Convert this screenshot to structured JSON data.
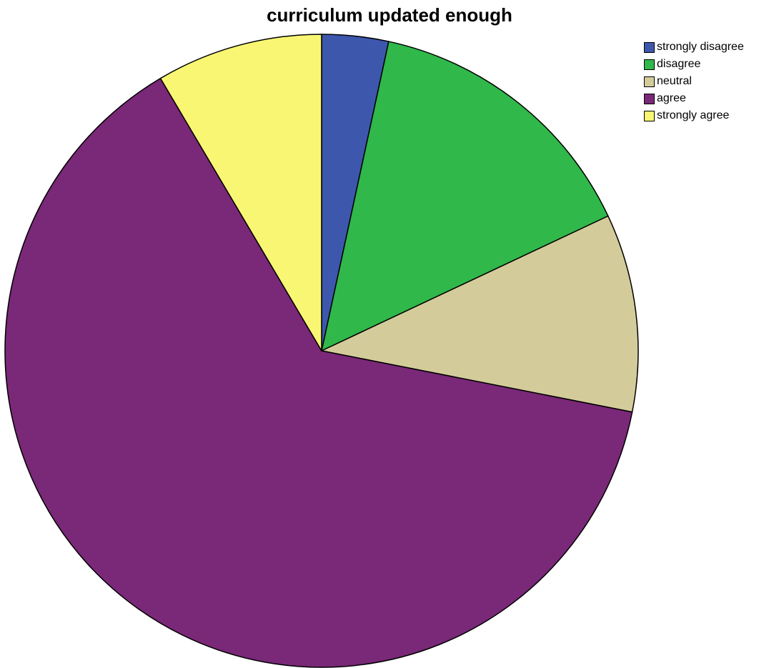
{
  "chart_data": {
    "type": "pie",
    "title": "curriculum updated enough",
    "categories": [
      "strongly disagree",
      "disagree",
      "neutral",
      "agree",
      "strongly agree"
    ],
    "values": [
      3.4,
      14.6,
      10.1,
      63.4,
      8.5
    ],
    "unit": "percent",
    "colors": [
      "#3d57ad",
      "#30b84a",
      "#d3cc9a",
      "#7a2878",
      "#f9f674"
    ],
    "start_angle": "12 o'clock",
    "direction": "clockwise",
    "legend": "top-right"
  }
}
